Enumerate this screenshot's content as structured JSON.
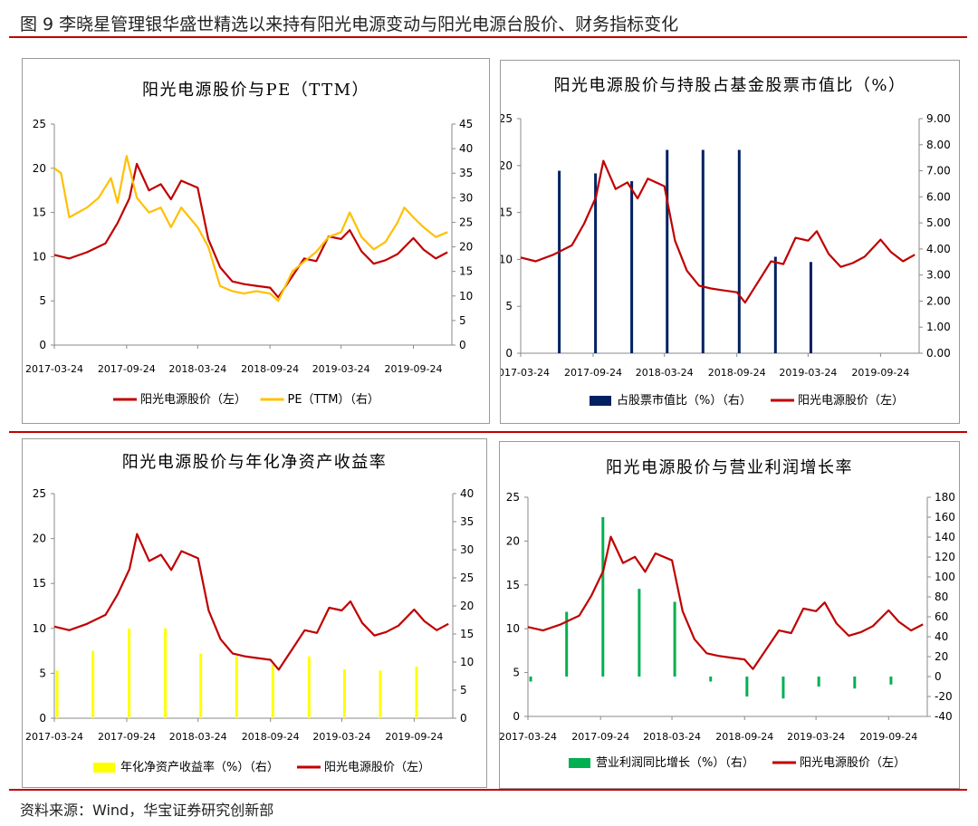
{
  "header": {
    "title": "图 9  李晓星管理银华盛世精选以来持有阳光电源变动与阳光电源台股价、财务指标变化"
  },
  "footer": {
    "source": "资料来源：Wind，华宝证券研究创新部"
  },
  "colors": {
    "price": "#c00000",
    "pe": "#ffc000",
    "holding": "#002060",
    "roe": "#ffff00",
    "growth": "#00b050",
    "rule": "#c00000"
  },
  "chart_data": [
    {
      "type": "line",
      "title": "阳光电源股价与PE（TTM）",
      "x_ticks": [
        "2017-03-24",
        "2017-09-24",
        "2018-03-24",
        "2018-09-24",
        "2019-03-24",
        "2019-09-24"
      ],
      "x_range": [
        "2017-03-24",
        "2019-12-31"
      ],
      "y_left": {
        "range": [
          0,
          25
        ],
        "ticks": [
          "0",
          "5",
          "10",
          "15",
          "20",
          "25"
        ]
      },
      "y_right": {
        "range": [
          0,
          45
        ],
        "ticks": [
          "0",
          "5",
          "10",
          "15",
          "20",
          "25",
          "30",
          "35",
          "40",
          "45"
        ]
      },
      "legend": [
        "阳光电源股价（左）",
        "PE（TTM）（右）"
      ],
      "legend_position": "bottom",
      "series": [
        {
          "name": "阳光电源股价（左）",
          "axis": "left",
          "x": [
            "2017-03-24",
            "2017-05-01",
            "2017-06-15",
            "2017-08-01",
            "2017-09-01",
            "2017-10-01",
            "2017-10-20",
            "2017-11-20",
            "2017-12-20",
            "2018-01-15",
            "2018-02-10",
            "2018-03-24",
            "2018-04-20",
            "2018-05-20",
            "2018-06-20",
            "2018-07-20",
            "2018-08-20",
            "2018-09-24",
            "2018-10-15",
            "2018-11-20",
            "2018-12-20",
            "2019-01-20",
            "2019-02-20",
            "2019-03-24",
            "2019-04-15",
            "2019-05-15",
            "2019-06-15",
            "2019-07-15",
            "2019-08-15",
            "2019-09-24",
            "2019-10-20",
            "2019-11-20",
            "2019-12-20"
          ],
          "y": [
            10.2,
            9.8,
            10.5,
            11.5,
            13.8,
            16.6,
            20.5,
            17.5,
            18.2,
            16.5,
            18.6,
            17.8,
            12.0,
            8.8,
            7.2,
            6.9,
            6.7,
            6.5,
            5.4,
            7.8,
            9.8,
            9.5,
            12.3,
            12.0,
            13.0,
            10.6,
            9.2,
            9.6,
            10.3,
            12.1,
            10.8,
            9.8,
            10.5
          ]
        },
        {
          "name": "PE（TTM）（右）",
          "axis": "right",
          "x": [
            "2017-03-24",
            "2017-04-10",
            "2017-05-01",
            "2017-06-15",
            "2017-07-15",
            "2017-08-15",
            "2017-09-01",
            "2017-09-24",
            "2017-10-20",
            "2017-11-20",
            "2017-12-20",
            "2018-01-15",
            "2018-02-10",
            "2018-03-24",
            "2018-04-20",
            "2018-05-20",
            "2018-06-20",
            "2018-07-20",
            "2018-08-20",
            "2018-09-24",
            "2018-10-15",
            "2018-11-20",
            "2018-12-20",
            "2019-01-20",
            "2019-02-20",
            "2019-03-24",
            "2019-04-15",
            "2019-05-15",
            "2019-06-15",
            "2019-07-15",
            "2019-08-15",
            "2019-09-01",
            "2019-09-24",
            "2019-10-20",
            "2019-11-20",
            "2019-12-20"
          ],
          "y": [
            36,
            35,
            26,
            28,
            30,
            34,
            29,
            38.5,
            30,
            27,
            28,
            24,
            28,
            24,
            20,
            12,
            11,
            10.5,
            11,
            10.5,
            9,
            15,
            17,
            19,
            22,
            23,
            27,
            22,
            19.5,
            21,
            25,
            28,
            26,
            24,
            22,
            23
          ]
        }
      ]
    },
    {
      "type": "bar+line",
      "title": "阳光电源股价与持股占基金股票市值比（%）",
      "x_ticks": [
        "2017-03-24",
        "2017-09-24",
        "2018-03-24",
        "2018-09-24",
        "2019-03-24",
        "2019-09-24"
      ],
      "x_range": [
        "2017-03-24",
        "2019-12-31"
      ],
      "y_left": {
        "range": [
          0,
          25
        ],
        "ticks": [
          "0",
          "5",
          "10",
          "15",
          "20",
          "25"
        ]
      },
      "y_right": {
        "range": [
          0,
          9
        ],
        "ticks": [
          "0.00",
          "1.00",
          "2.00",
          "3.00",
          "4.00",
          "5.00",
          "6.00",
          "7.00",
          "8.00",
          "9.00"
        ]
      },
      "legend": [
        "占股票市值比（%）（右）",
        "阳光电源股价（左）"
      ],
      "legend_position": "bottom",
      "bars": {
        "name": "占股票市值比（%）（右）",
        "axis": "right",
        "x": [
          "2017-06-30",
          "2017-09-30",
          "2017-12-31",
          "2018-03-31",
          "2018-06-30",
          "2018-09-30",
          "2018-12-31",
          "2019-03-31"
        ],
        "y": [
          7.0,
          6.9,
          6.6,
          7.8,
          7.8,
          7.8,
          3.7,
          3.5
        ]
      },
      "series": [
        {
          "name": "阳光电源股价（左）",
          "axis": "left",
          "ref": 0
        }
      ]
    },
    {
      "type": "bar+line",
      "title": "阳光电源股价与年化净资产收益率",
      "x_ticks": [
        "2017-03-24",
        "2017-09-24",
        "2018-03-24",
        "2018-09-24",
        "2019-03-24",
        "2019-09-24"
      ],
      "x_range": [
        "2017-03-24",
        "2019-12-31"
      ],
      "y_left": {
        "range": [
          0,
          25
        ],
        "ticks": [
          "0",
          "5",
          "10",
          "15",
          "20",
          "25"
        ]
      },
      "y_right": {
        "range": [
          0,
          40
        ],
        "ticks": [
          "0",
          "5",
          "10",
          "15",
          "20",
          "25",
          "30",
          "35",
          "40"
        ]
      },
      "legend": [
        "年化净资产收益率（%）（右）",
        "阳光电源股价（左）"
      ],
      "legend_position": "bottom",
      "bars": {
        "name": "年化净资产收益率（%）（右）",
        "axis": "right",
        "x": [
          "2017-03-31",
          "2017-06-30",
          "2017-09-30",
          "2017-12-31",
          "2018-03-31",
          "2018-06-30",
          "2018-09-30",
          "2018-12-31",
          "2019-03-31",
          "2019-06-30",
          "2019-09-30"
        ],
        "y": [
          8.5,
          12,
          16,
          16,
          11.5,
          11,
          9.5,
          11,
          8.7,
          8.5,
          9.2
        ]
      },
      "series": [
        {
          "name": "阳光电源股价（左）",
          "axis": "left",
          "ref": 0
        }
      ]
    },
    {
      "type": "bar+line",
      "title": "阳光电源股价与营业利润增长率",
      "x_ticks": [
        "2017-03-24",
        "2017-09-24",
        "2018-03-24",
        "2018-09-24",
        "2019-03-24",
        "2019-09-24"
      ],
      "x_range": [
        "2017-03-24",
        "2019-12-31"
      ],
      "y_left": {
        "range": [
          0,
          25
        ],
        "ticks": [
          "0",
          "5",
          "10",
          "15",
          "20",
          "25"
        ]
      },
      "y_right": {
        "range": [
          -40,
          180
        ],
        "ticks": [
          "-40",
          "-20",
          "0",
          "20",
          "40",
          "60",
          "80",
          "100",
          "120",
          "140",
          "160",
          "180"
        ]
      },
      "legend": [
        "营业利润同比增长（%）（右）",
        "阳光电源股价（左）"
      ],
      "legend_position": "bottom",
      "bars": {
        "name": "营业利润同比增长（%）（右）",
        "axis": "right",
        "x": [
          "2017-03-31",
          "2017-06-30",
          "2017-09-30",
          "2017-12-31",
          "2018-03-31",
          "2018-06-30",
          "2018-09-30",
          "2018-12-31",
          "2019-03-31",
          "2019-06-30",
          "2019-09-30"
        ],
        "y": [
          -5,
          65,
          160,
          88,
          75,
          -5,
          -20,
          -22,
          -10,
          -12,
          -8
        ]
      },
      "series": [
        {
          "name": "阳光电源股价（左）",
          "axis": "left",
          "ref": 0
        }
      ]
    }
  ]
}
